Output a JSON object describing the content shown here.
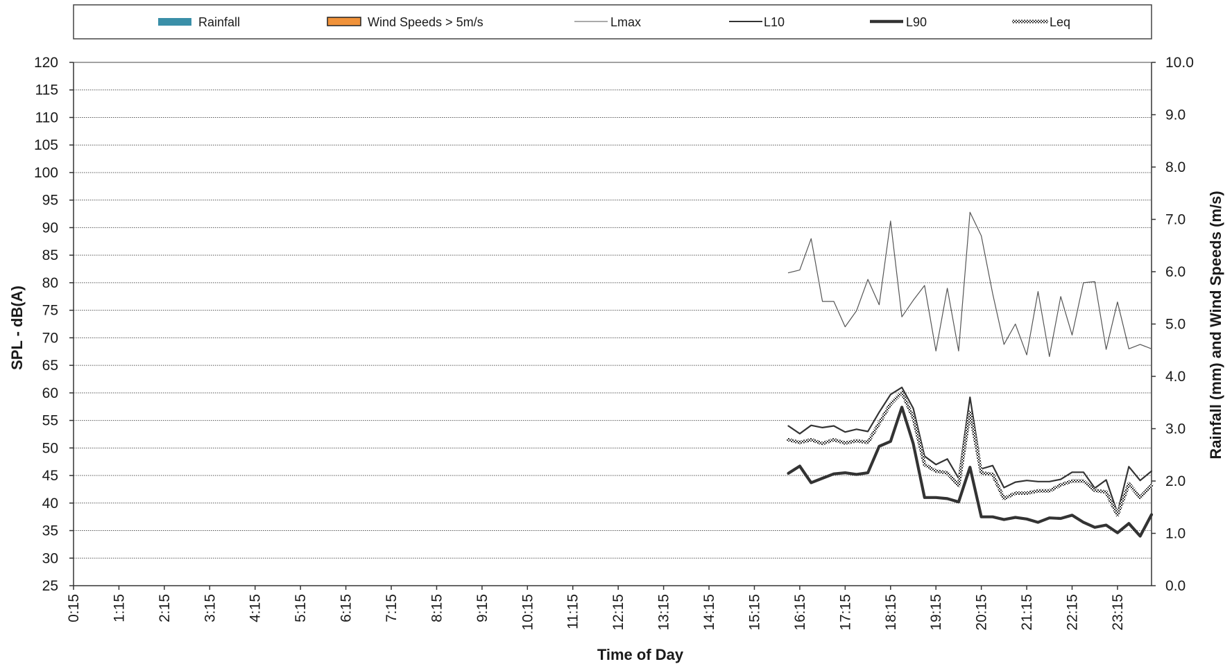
{
  "chart_data": {
    "type": "line",
    "title": "",
    "xlabel": "Time of Day",
    "ylabel": "SPL - dB(A)",
    "y2label": "Rainfall (mm) and Wind Speeds (m/s)",
    "ylim": [
      25,
      120
    ],
    "y_ticks": [
      25,
      30,
      35,
      40,
      45,
      50,
      55,
      60,
      65,
      70,
      75,
      80,
      85,
      90,
      95,
      100,
      105,
      110,
      115,
      120
    ],
    "y_tick_labels": [
      "25",
      "30",
      "35",
      "40",
      "45",
      "50",
      "55",
      "60",
      "65",
      "70",
      "75",
      "80",
      "85",
      "90",
      "95",
      "100",
      "105",
      "110",
      "115",
      "120"
    ],
    "y2lim": [
      0,
      10
    ],
    "y2_ticks": [
      0,
      1,
      2,
      3,
      4,
      5,
      6,
      7,
      8,
      9,
      10
    ],
    "y2_tick_labels": [
      "0.0",
      "1.0",
      "2.0",
      "3.0",
      "4.0",
      "5.0",
      "6.0",
      "7.0",
      "8.0",
      "9.0",
      "10.0"
    ],
    "x_tick_labels": [
      "0:15",
      "1:15",
      "2:15",
      "3:15",
      "4:15",
      "5:15",
      "6:15",
      "7:15",
      "8:15",
      "9:15",
      "10:15",
      "11:15",
      "12:15",
      "13:15",
      "14:15",
      "15:15",
      "16:15",
      "17:15",
      "18:15",
      "19:15",
      "20:15",
      "21:15",
      "22:15",
      "23:15"
    ],
    "x_interval_minutes": 15,
    "x_start_time": "0:15",
    "x_end_time": "24:00",
    "grid": true,
    "legend_position": "top",
    "legend": [
      "Rainfall",
      "Wind Speeds > 5m/s",
      "Lmax",
      "L10",
      "L90",
      "Leq"
    ],
    "colors": {
      "rainfall": "#3a8fa8",
      "wind": "#f0923a",
      "lines": "#333333"
    },
    "bars": [
      {
        "name": "Rainfall",
        "values": []
      },
      {
        "name": "Wind Speeds > 5m/s",
        "values": []
      }
    ],
    "series_x": [
      "16:00",
      "16:15",
      "16:30",
      "16:45",
      "17:00",
      "17:15",
      "17:30",
      "17:45",
      "18:00",
      "18:15",
      "18:30",
      "18:45",
      "19:00",
      "19:15",
      "19:30",
      "19:45",
      "20:00",
      "20:15",
      "20:30",
      "20:45",
      "21:00",
      "21:15",
      "21:30",
      "21:45",
      "22:00",
      "22:15",
      "22:30",
      "22:45",
      "23:00",
      "23:15",
      "23:30",
      "23:45",
      "24:00"
    ],
    "series": [
      {
        "name": "Lmax",
        "style": "thin",
        "values": [
          81.8,
          82.3,
          88.0,
          76.6,
          76.6,
          72.0,
          74.9,
          80.6,
          76.0,
          91.2,
          73.8,
          76.8,
          79.5,
          67.6,
          79.0,
          67.6,
          92.8,
          88.5,
          78.0,
          68.8,
          72.5,
          66.9,
          78.4,
          66.6,
          77.5,
          70.5,
          80.0,
          80.2,
          67.9,
          76.5,
          68.0,
          68.8,
          68.0
        ]
      },
      {
        "name": "L10",
        "style": "medium",
        "values": [
          54.0,
          52.6,
          54.1,
          53.7,
          54.0,
          52.9,
          53.4,
          53.0,
          56.5,
          59.7,
          61.0,
          57.2,
          48.5,
          47.0,
          48.0,
          44.5,
          59.2,
          46.2,
          46.8,
          42.8,
          43.8,
          44.1,
          43.9,
          43.9,
          44.3,
          45.6,
          45.6,
          42.7,
          44.2,
          38.2,
          46.6,
          44.1,
          45.8
        ]
      },
      {
        "name": "Leq",
        "style": "hatched",
        "values": [
          51.5,
          51.0,
          51.5,
          50.8,
          51.5,
          50.9,
          51.3,
          51.0,
          54.5,
          58.0,
          60.1,
          55.5,
          47.0,
          45.8,
          45.5,
          43.2,
          56.5,
          45.5,
          45.2,
          40.8,
          41.8,
          41.8,
          42.2,
          42.2,
          43.3,
          44.0,
          44.0,
          42.3,
          42.0,
          37.8,
          43.5,
          41.0,
          43.2
        ]
      },
      {
        "name": "L90",
        "style": "thick",
        "values": [
          45.4,
          46.7,
          43.7,
          44.5,
          45.3,
          45.5,
          45.2,
          45.5,
          50.3,
          51.2,
          57.4,
          50.8,
          41.0,
          41.0,
          40.8,
          40.2,
          46.5,
          37.5,
          37.5,
          37.0,
          37.4,
          37.1,
          36.5,
          37.3,
          37.2,
          37.8,
          36.5,
          35.6,
          36.0,
          34.6,
          36.3,
          34.0,
          37.9
        ]
      }
    ]
  }
}
